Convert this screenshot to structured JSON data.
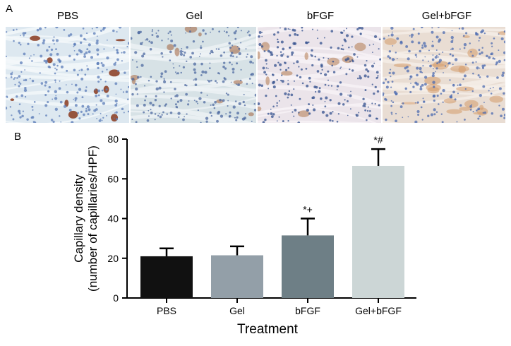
{
  "panel_a": {
    "letter": "A",
    "images": [
      {
        "label": "PBS",
        "palette": {
          "bg": "#dde8f0",
          "nucleus": "#5b7cb8",
          "stain": "#8a3a1e",
          "fiber": "#f4f7fa"
        }
      },
      {
        "label": "Gel",
        "palette": {
          "bg": "#d7e2e6",
          "nucleus": "#4e6aa0",
          "stain": "#a0603a",
          "fiber": "#eef3f5"
        }
      },
      {
        "label": "bFGF",
        "palette": {
          "bg": "#ebe4ea",
          "nucleus": "#33508e",
          "stain": "#b37a4e",
          "fiber": "#f7f3f6"
        }
      },
      {
        "label": "Gel+bFGF",
        "palette": {
          "bg": "#e9ddd3",
          "nucleus": "#4c6bb0",
          "stain": "#d49a6a",
          "fiber": "#f5efe8"
        }
      }
    ]
  },
  "panel_b": {
    "letter": "B"
  },
  "chart_data": {
    "type": "bar",
    "categories": [
      "PBS",
      "Gel",
      "bFGF",
      "Gel+bFGF"
    ],
    "values": [
      21,
      21.5,
      31.5,
      66.5
    ],
    "errors": [
      4,
      4.5,
      8.5,
      8.5
    ],
    "annotations": [
      "",
      "",
      "*+",
      "*#"
    ],
    "colors": [
      "#111111",
      "#939fa8",
      "#6e7f86",
      "#ccd6d6"
    ],
    "ylabel_line1": "Capillary density",
    "ylabel_line2": "(number of capillaries/HPF)",
    "xlabel": "Treatment",
    "ylim": [
      0,
      80
    ],
    "yticks": [
      0,
      20,
      40,
      60,
      80
    ],
    "error_bars": "upper only"
  }
}
